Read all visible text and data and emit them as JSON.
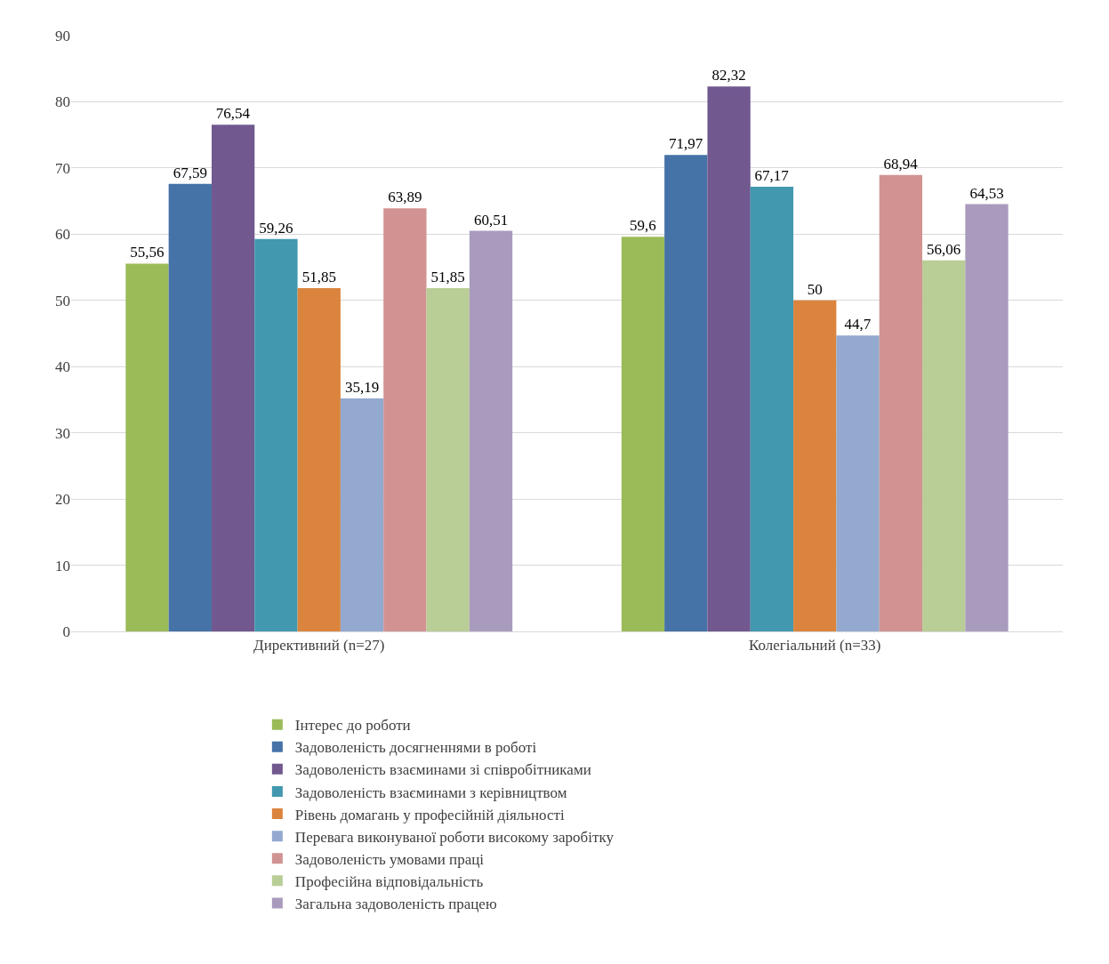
{
  "chart_data": {
    "type": "bar",
    "categories": [
      "Директивний (n=27)",
      "Колегіальний (n=33)"
    ],
    "series": [
      {
        "name": "Інтерес до роботи",
        "color": "#9bbb59",
        "values": [
          55.56,
          59.6
        ],
        "value_labels": [
          "55,56",
          "59,6"
        ]
      },
      {
        "name": "Задоволеність досягненнями в роботі",
        "color": "#4572a7",
        "values": [
          67.59,
          71.97
        ],
        "value_labels": [
          "67,59",
          "71,97"
        ]
      },
      {
        "name": "Задоволеність взаєминами зі співробітниками",
        "color": "#71588f",
        "values": [
          76.54,
          82.32
        ],
        "value_labels": [
          "76,54",
          "82,32"
        ]
      },
      {
        "name": "Задоволеність взаєминами з керівництвом",
        "color": "#4198af",
        "values": [
          59.26,
          67.17
        ],
        "value_labels": [
          "59,26",
          "67,17"
        ]
      },
      {
        "name": "Рівень домагань у професійній діяльності",
        "color": "#db843d",
        "values": [
          51.85,
          50
        ],
        "value_labels": [
          "51,85",
          "50"
        ]
      },
      {
        "name": "Перевага виконуваної роботи високому заробітку",
        "color": "#93a9cf",
        "values": [
          35.19,
          44.7
        ],
        "value_labels": [
          "35,19",
          "44,7"
        ]
      },
      {
        "name": "Задоволеність умовами праці",
        "color": "#d19392",
        "values": [
          63.89,
          68.94
        ],
        "value_labels": [
          "63,89",
          "68,94"
        ]
      },
      {
        "name": "Професійна відповідальність",
        "color": "#b9cd96",
        "values": [
          51.85,
          56.06
        ],
        "value_labels": [
          "51,85",
          "56,06"
        ]
      },
      {
        "name": "Загальна задоволеність працею",
        "color": "#a99bbd",
        "values": [
          60.51,
          64.53
        ],
        "value_labels": [
          "60,51",
          "64,53"
        ]
      }
    ],
    "ylim": [
      0,
      90
    ],
    "yticks": [
      0,
      10,
      20,
      30,
      40,
      50,
      60,
      70,
      80,
      90
    ],
    "grid": "y",
    "legend": "bottom"
  }
}
